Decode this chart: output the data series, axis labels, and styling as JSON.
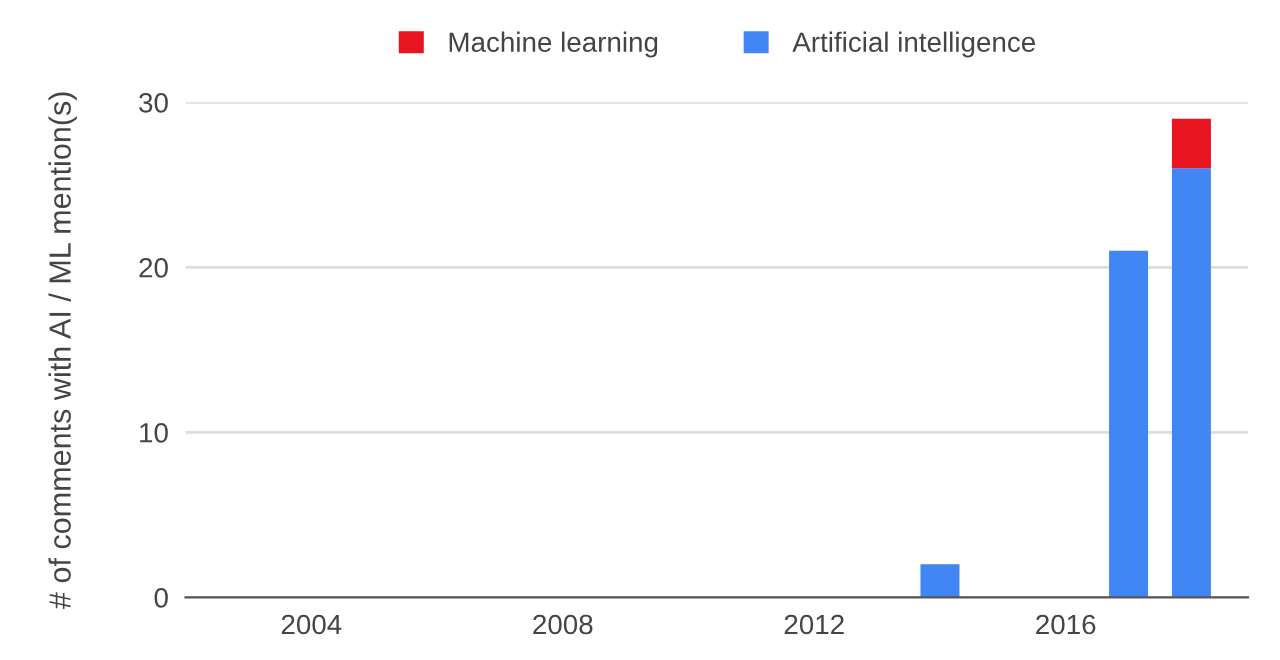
{
  "chart_data": {
    "type": "bar",
    "stacked": true,
    "ylabel": "# of comments with AI / ML mention(s)",
    "x": [
      2014,
      2017,
      2018
    ],
    "series": [
      {
        "name": "Artificial intelligence",
        "color": "#4285f4",
        "values": [
          2,
          21,
          26
        ]
      },
      {
        "name": "Machine learning",
        "color": "#e8141f",
        "values": [
          null,
          null,
          3
        ]
      }
    ],
    "xlim": [
      2002,
      2018.9
    ],
    "xticks": [
      2004,
      2008,
      2012,
      2016
    ],
    "ylim": [
      0,
      30
    ],
    "yticks": [
      0,
      10,
      20,
      30
    ],
    "grid": "y",
    "legend": "top"
  }
}
